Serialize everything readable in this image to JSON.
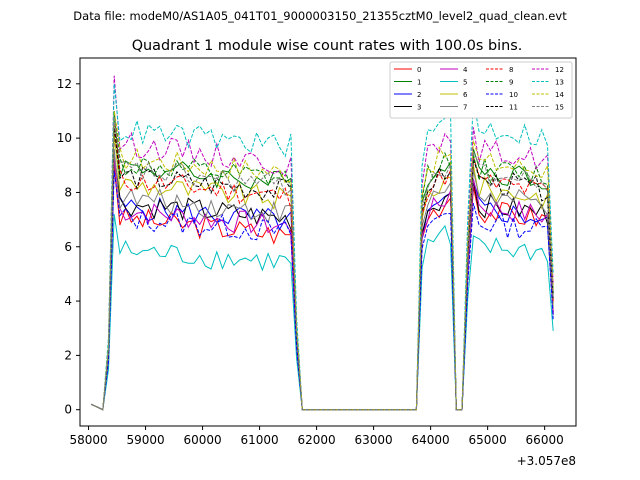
{
  "suptitle": "Data file: modeM0/AS1A05_041T01_9000003150_21355cztM0_level2_quad_clean.evt",
  "chart_data": {
    "type": "line",
    "title": "Quadrant 1 module wise count rates with 100.0s bins.",
    "xlabel": "",
    "ylabel": "",
    "x_offset_label": "+3.057e8",
    "xlim": [
      57850,
      66550
    ],
    "ylim": [
      -0.6,
      12.95
    ],
    "xticks": [
      58000,
      59000,
      60000,
      61000,
      62000,
      63000,
      64000,
      65000,
      66000
    ],
    "xtick_labels": [
      "58000",
      "59000",
      "60000",
      "61000",
      "62000",
      "63000",
      "64000",
      "65000",
      "66000"
    ],
    "yticks": [
      0,
      2,
      4,
      6,
      8,
      10,
      12
    ],
    "ytick_labels": [
      "0",
      "2",
      "4",
      "6",
      "8",
      "10",
      "12"
    ],
    "legend_position": "top-right",
    "legend_columns": 4,
    "segments": [
      {
        "x_start": 58050,
        "x_end": 58250,
        "level": 0.0
      },
      {
        "x_start": 58250,
        "x_end": 61650,
        "level": 1.0
      },
      {
        "x_start": 61650,
        "x_end": 63850,
        "level": 0.0
      },
      {
        "x_start": 63850,
        "x_end": 64450,
        "level": 1.0
      },
      {
        "x_start": 64450,
        "x_end": 64600,
        "level": 0.0
      },
      {
        "x_start": 64600,
        "x_end": 66150,
        "level": 1.0
      }
    ],
    "series": [
      {
        "name": "0",
        "color": "#ff0000",
        "dash": "solid",
        "base": 6.4,
        "peak": 9.0,
        "late_base": 7.0,
        "late_peak": 8.2
      },
      {
        "name": "1",
        "color": "#008000",
        "dash": "solid",
        "base": 8.3,
        "peak": 11.0,
        "late_base": 8.5,
        "late_peak": 9.6
      },
      {
        "name": "2",
        "color": "#0000ff",
        "dash": "solid",
        "base": 6.9,
        "peak": 9.2,
        "late_base": 7.0,
        "late_peak": 8.4
      },
      {
        "name": "3",
        "color": "#000000",
        "dash": "solid",
        "base": 7.0,
        "peak": 9.4,
        "late_base": 7.2,
        "late_peak": 8.4
      },
      {
        "name": "4",
        "color": "#bf00bf",
        "dash": "solid",
        "base": 6.7,
        "peak": 9.3,
        "late_base": 7.1,
        "late_peak": 8.5
      },
      {
        "name": "5",
        "color": "#00bfbf",
        "dash": "solid",
        "base": 5.4,
        "peak": 7.2,
        "late_base": 5.8,
        "late_peak": 6.4
      },
      {
        "name": "6",
        "color": "#bfbf00",
        "dash": "solid",
        "base": 7.7,
        "peak": 10.2,
        "late_base": 7.8,
        "late_peak": 9.0
      },
      {
        "name": "7",
        "color": "#808080",
        "dash": "solid",
        "base": 7.2,
        "peak": 9.6,
        "late_base": 7.5,
        "late_peak": 8.8
      },
      {
        "name": "8",
        "color": "#ff0000",
        "dash": "dashed",
        "base": 7.8,
        "peak": 10.5,
        "late_base": 8.0,
        "late_peak": 9.3
      },
      {
        "name": "9",
        "color": "#008000",
        "dash": "dashed",
        "base": 8.4,
        "peak": 11.0,
        "late_base": 8.6,
        "late_peak": 9.4
      },
      {
        "name": "10",
        "color": "#0000ff",
        "dash": "dashed",
        "base": 6.5,
        "peak": 8.8,
        "late_base": 6.6,
        "late_peak": 7.6
      },
      {
        "name": "11",
        "color": "#000000",
        "dash": "dashed",
        "base": 8.0,
        "peak": 10.4,
        "late_base": 8.1,
        "late_peak": 9.2
      },
      {
        "name": "12",
        "color": "#bf00bf",
        "dash": "dashed",
        "base": 9.0,
        "peak": 12.3,
        "late_base": 9.2,
        "late_peak": 10.4
      },
      {
        "name": "13",
        "color": "#00bfbf",
        "dash": "dashed",
        "base": 9.7,
        "peak": 12.0,
        "late_base": 10.0,
        "late_peak": 11.4
      },
      {
        "name": "14",
        "color": "#bfbf00",
        "dash": "dashed",
        "base": 8.7,
        "peak": 11.0,
        "late_base": 8.8,
        "late_peak": 9.9
      },
      {
        "name": "15",
        "color": "#808080",
        "dash": "dashed",
        "base": 8.2,
        "peak": 10.8,
        "late_base": 8.3,
        "late_peak": 9.5
      }
    ]
  }
}
